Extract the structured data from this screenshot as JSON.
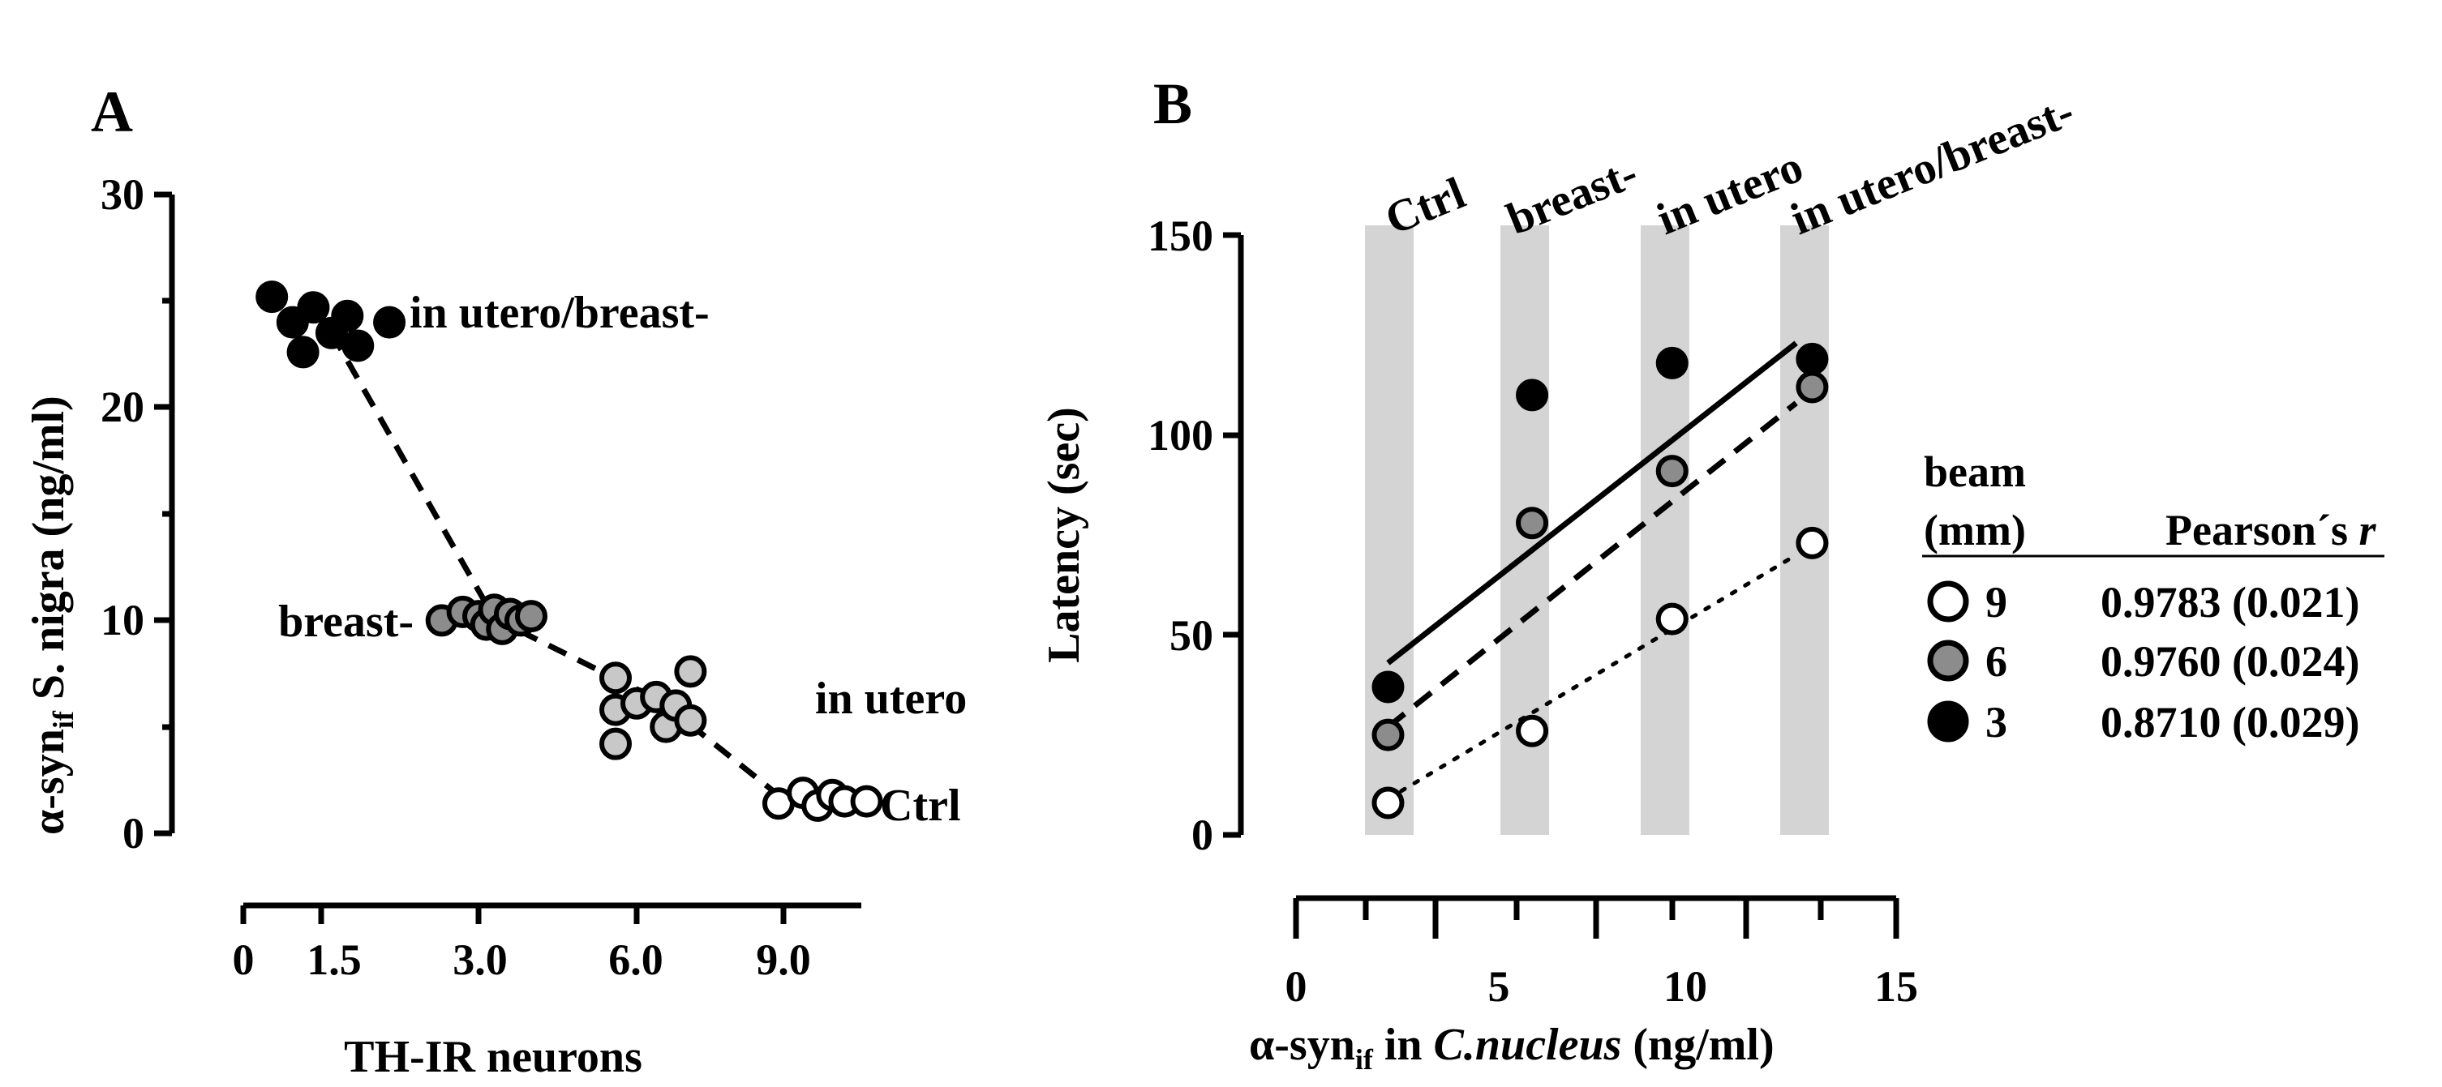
{
  "chart_data": [
    {
      "panel_label": "A",
      "type": "scatter",
      "title": "",
      "xlabel": "TH-IR neurons",
      "ylabel_main": "α-syn",
      "ylabel_sub": "if",
      "ylabel_rest": " S. nigra (ng/ml)",
      "x_tick_labels": [
        "0",
        "1.5",
        "3.0",
        "6.0",
        "9.0"
      ],
      "y_tick_labels": [
        "0",
        "10",
        "20",
        "30"
      ],
      "ylim": [
        0,
        30
      ],
      "colors": {
        "in_utero_breast": "#000000",
        "breast": "#8c8c8c",
        "in_utero": "#c8c8c8",
        "ctrl": "#ffffff"
      },
      "groups": [
        {
          "name": "in utero/breast-",
          "color_key": "in_utero_breast",
          "points": [
            [
              0.55,
              25.2
            ],
            [
              0.95,
              24.0
            ],
            [
              1.15,
              22.6
            ],
            [
              1.35,
              24.7
            ],
            [
              1.6,
              23.5
            ],
            [
              1.75,
              24.3
            ],
            [
              1.85,
              22.9
            ],
            [
              2.15,
              24.0
            ]
          ]
        },
        {
          "name": "breast-",
          "color_key": "breast",
          "points": [
            [
              2.65,
              10.0
            ],
            [
              2.85,
              10.4
            ],
            [
              3.0,
              10.2
            ],
            [
              3.15,
              9.8
            ],
            [
              3.3,
              10.5
            ],
            [
              3.45,
              9.6
            ],
            [
              3.6,
              10.3
            ],
            [
              3.8,
              10.0
            ],
            [
              4.0,
              10.2
            ]
          ]
        },
        {
          "name": "in utero",
          "color_key": "in_utero",
          "points": [
            [
              5.6,
              7.3
            ],
            [
              5.6,
              5.8
            ],
            [
              5.6,
              4.2
            ],
            [
              6.0,
              6.1
            ],
            [
              6.4,
              6.4
            ],
            [
              6.6,
              5.0
            ],
            [
              6.8,
              6.0
            ],
            [
              7.1,
              7.6
            ],
            [
              7.1,
              5.3
            ]
          ]
        },
        {
          "name": "Ctrl",
          "color_key": "ctrl",
          "points": [
            [
              8.9,
              1.4
            ],
            [
              9.4,
              1.9
            ],
            [
              9.7,
              1.3
            ],
            [
              10.0,
              1.8
            ],
            [
              10.25,
              1.5
            ],
            [
              10.7,
              1.5
            ]
          ]
        }
      ],
      "trend_line": [
        [
          1.6,
          23.5
        ],
        [
          3.3,
          10.1
        ],
        [
          6.5,
          6.2
        ],
        [
          9.0,
          1.6
        ]
      ],
      "group_labels": {
        "in_utero_breast": "in utero/breast-",
        "breast": "breast-",
        "in_utero": "in utero",
        "ctrl": "Ctrl"
      }
    },
    {
      "panel_label": "B",
      "type": "scatter",
      "title": "",
      "xlabel_pre": "α-syn",
      "xlabel_sub": "if",
      "xlabel_mid": " in ",
      "xlabel_ital": "C.nucleus",
      "xlabel_post": " (ng/ml)",
      "ylabel": "Latency (sec)",
      "x_tick_labels": [
        "0",
        "5",
        "10",
        "15"
      ],
      "y_tick_labels": [
        "0",
        "50",
        "100",
        "150"
      ],
      "xlim": [
        0,
        15
      ],
      "ylim": [
        0,
        150
      ],
      "column_labels": [
        "Ctrl",
        "breast-",
        "in utero",
        "in utero/breast-"
      ],
      "column_x": [
        2.3,
        5.9,
        9.4,
        12.9
      ],
      "series": [
        {
          "beam": "9",
          "color": "#ffffff",
          "line": "dotted",
          "pearson": "0.9783 (0.021)",
          "points": [
            [
              2.3,
              8
            ],
            [
              5.9,
              26
            ],
            [
              9.4,
              54
            ],
            [
              12.9,
              73
            ]
          ],
          "fit": [
            [
              2.3,
              9
            ],
            [
              12.5,
              70
            ]
          ]
        },
        {
          "beam": "6",
          "color": "#8c8c8c",
          "line": "dashed",
          "pearson": "0.9760 (0.024)",
          "points": [
            [
              2.3,
              25
            ],
            [
              5.9,
              78
            ],
            [
              9.4,
              91
            ],
            [
              12.9,
              112
            ]
          ],
          "fit": [
            [
              2.3,
              27
            ],
            [
              12.5,
              108
            ]
          ]
        },
        {
          "beam": "3",
          "color": "#000000",
          "line": "solid",
          "pearson": "0.8710 (0.029)",
          "points": [
            [
              2.3,
              37
            ],
            [
              5.9,
              110
            ],
            [
              9.4,
              118
            ],
            [
              12.9,
              119
            ]
          ],
          "fit": [
            [
              2.3,
              43
            ],
            [
              12.5,
              123
            ]
          ]
        }
      ],
      "legend": {
        "title_line1": "beam",
        "title_line2": "(mm)",
        "header_pre": "Pearson´s ",
        "header_ital": "r"
      }
    }
  ]
}
